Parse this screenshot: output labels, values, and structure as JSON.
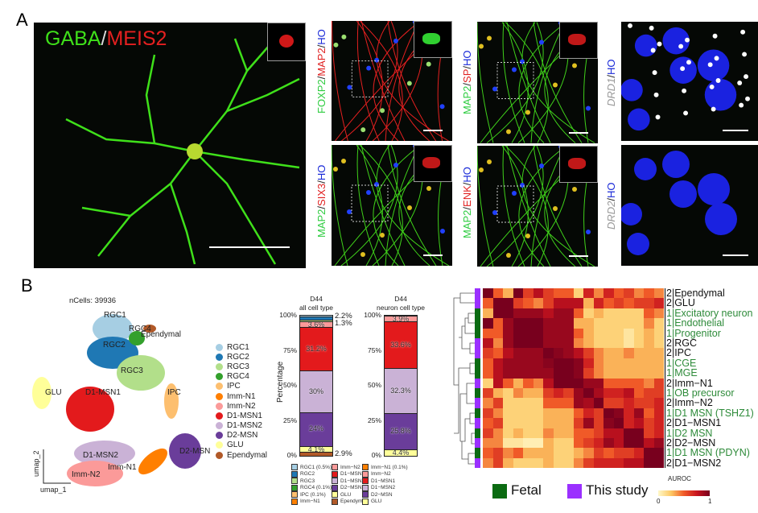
{
  "panel_a": {
    "label": "A",
    "main_image": {
      "label_green": "GABA",
      "slash": "/",
      "label_red": "MEIS2"
    },
    "images": [
      {
        "parts": [
          [
            "FOXP2",
            "#2ecc40"
          ],
          [
            "/",
            "#222"
          ],
          [
            "MAP2",
            "#e02020"
          ],
          [
            "/",
            "#222"
          ],
          [
            "HO",
            "#1a2ad8"
          ]
        ]
      },
      {
        "parts": [
          [
            "MAP2",
            "#2ecc40"
          ],
          [
            "/",
            "#222"
          ],
          [
            "SIX3",
            "#e02020"
          ],
          [
            "/",
            "#222"
          ],
          [
            "HO",
            "#1a2ad8"
          ]
        ]
      },
      {
        "parts": [
          [
            "MAP2",
            "#2ecc40"
          ],
          [
            "/",
            "#222"
          ],
          [
            "SP",
            "#e02020"
          ],
          [
            "/",
            "#222"
          ],
          [
            "HO",
            "#1a2ad8"
          ]
        ]
      },
      {
        "parts": [
          [
            "MAP2",
            "#2ecc40"
          ],
          [
            "/",
            "#222"
          ],
          [
            "ENK",
            "#e02020"
          ],
          [
            "/",
            "#222"
          ],
          [
            "HO",
            "#1a2ad8"
          ]
        ]
      },
      {
        "parts": [
          [
            "DRD1",
            "#999"
          ],
          [
            "/",
            "#222"
          ],
          [
            "HO",
            "#1a2ad8"
          ]
        ]
      },
      {
        "parts": [
          [
            "DRD2",
            "#999"
          ],
          [
            "/",
            "#222"
          ],
          [
            "HO",
            "#1a2ad8"
          ]
        ]
      }
    ]
  },
  "panel_b": {
    "label": "B",
    "umap": {
      "ncells": "nCells: 39936",
      "xaxis": "umap_1",
      "yaxis": "umap_2",
      "legend": [
        {
          "name": "RGC1",
          "color": "#a6cee3"
        },
        {
          "name": "RGC2",
          "color": "#1f78b4"
        },
        {
          "name": "RGC3",
          "color": "#b2df8a"
        },
        {
          "name": "RGC4",
          "color": "#33a02c"
        },
        {
          "name": "IPC",
          "color": "#fdbf6f"
        },
        {
          "name": "Imm-N1",
          "color": "#ff7f00"
        },
        {
          "name": "Imm-N2",
          "color": "#fb9a99"
        },
        {
          "name": "D1-MSN1",
          "color": "#e31a1c"
        },
        {
          "name": "D1-MSN2",
          "color": "#cab2d6"
        },
        {
          "name": "D2-MSN",
          "color": "#6a3d9a"
        },
        {
          "name": "GLU",
          "color": "#ffff99"
        },
        {
          "name": "Ependymal",
          "color": "#b15928"
        }
      ]
    },
    "bars": {
      "ylabel": "Percentage",
      "ticks": [
        "0%",
        "25%",
        "50%",
        "75%",
        "100%"
      ],
      "charts": [
        {
          "title1": "D44",
          "title2": "all cell type",
          "segments": [
            [
              "Ependymal",
              2.9,
              "#b15928"
            ],
            [
              "GLU",
              4.1,
              "#ffff99"
            ],
            [
              "D2-MSN",
              24,
              "#6a3d9a"
            ],
            [
              "D1-MSN2",
              30,
              "#cab2d6"
            ],
            [
              "D1-MSN1",
              31.2,
              "#e31a1c"
            ],
            [
              "Imm-N2",
              3.6,
              "#fb9a99"
            ],
            [
              "Imm-N1",
              0.1,
              "#ff7f00"
            ],
            [
              "IPC",
              0.1,
              "#fdbf6f"
            ],
            [
              "RGC4",
              0.1,
              "#33a02c"
            ],
            [
              "RGC3",
              1.3,
              "#b2df8a"
            ],
            [
              "RGC2",
              2.2,
              "#1f78b4"
            ],
            [
              "RGC1",
              0.5,
              "#a6cee3"
            ]
          ],
          "labels": {
            "D2-MSN": "24%",
            "D1-MSN2": "30%",
            "D1-MSN1": "31.2%",
            "Imm-N2": "3.6%",
            "GLU": "4.1%"
          },
          "side_labels": [
            "2.2%",
            "1.3%",
            "2.9%"
          ],
          "legend": [
            "RGC1 (0.5%)",
            "RGC2",
            "RGC3",
            "RGC4 (0.1%)",
            "IPC (0.1%)",
            "Imm−N1",
            "Imm−N2",
            "D1−MSN1",
            "D1−MSN2",
            "D2−MSN",
            "GLU",
            "Ependymal"
          ]
        },
        {
          "title1": "D44",
          "title2": "neuron cell type",
          "segments": [
            [
              "GLU",
              4.4,
              "#ffff99"
            ],
            [
              "D2-MSN",
              25.8,
              "#6a3d9a"
            ],
            [
              "D1-MSN2",
              32.3,
              "#cab2d6"
            ],
            [
              "D1-MSN1",
              33.6,
              "#e31a1c"
            ],
            [
              "Imm-N2",
              3.9,
              "#fb9a99"
            ],
            [
              "Imm-N1",
              0.1,
              "#ff7f00"
            ]
          ],
          "labels": {
            "GLU": "4.4%",
            "D2-MSN": "25.8%",
            "D1-MSN2": "32.3%",
            "D1-MSN1": "33.6%",
            "Imm-N2": "3.9%"
          },
          "legend": [
            "Imm−N1 (0.1%)",
            "Imm−N2",
            "D1−MSN1",
            "D1−MSN2",
            "D2−MSN",
            "GLU"
          ]
        }
      ]
    },
    "heatmap": {
      "rows": [
        [
          "2|Ependymal",
          "study"
        ],
        [
          "2|GLU",
          "study"
        ],
        [
          "1|Excitatory neuron",
          "fetal"
        ],
        [
          "1|Endothelial",
          "fetal"
        ],
        [
          "1|Progenitor",
          "fetal"
        ],
        [
          "2|RGC",
          "study"
        ],
        [
          "2|IPC",
          "study"
        ],
        [
          "1|CGE",
          "fetal"
        ],
        [
          "1|MGE",
          "fetal"
        ],
        [
          "2|Imm−N1",
          "study"
        ],
        [
          "1|OB precursor",
          "fetal"
        ],
        [
          "2|Imm−N2",
          "study"
        ],
        [
          "1|D1 MSN (TSHZ1)",
          "fetal"
        ],
        [
          "2|D1−MSN1",
          "study"
        ],
        [
          "1|D2 MSN",
          "fetal"
        ],
        [
          "2|D2−MSN",
          "study"
        ],
        [
          "1|D1 MSN (PDYN)",
          "fetal"
        ],
        [
          "2|D1−MSN2",
          "study"
        ]
      ],
      "colors": {
        "fetal": "#0b6b12",
        "study": "#9b30ff",
        "fetal_text": "#2e8b3a",
        "study_text": "#111"
      },
      "legend": {
        "fetal": "Fetal",
        "study": "This study",
        "scale_title": "AUROC",
        "min": "0",
        "max": "1"
      },
      "values": [
        [
          1,
          0.5,
          0.3,
          1,
          0.6,
          0.8,
          0.6,
          0.5,
          0.5,
          0.2,
          0.7,
          0.4,
          0.7,
          0.5,
          0.6,
          0.4,
          0.5,
          0.4
        ],
        [
          0.5,
          1,
          1,
          0.6,
          0.5,
          0.4,
          0.6,
          0.8,
          0.8,
          0.8,
          0.3,
          0.7,
          0.5,
          0.6,
          0.5,
          0.6,
          0.6,
          0.7
        ],
        [
          0.3,
          1,
          1,
          0.9,
          0.9,
          0.9,
          0.8,
          0.9,
          0.9,
          0.5,
          0.2,
          0.3,
          0.2,
          0.2,
          0.2,
          0.2,
          0.5,
          0.4
        ],
        [
          1,
          0.5,
          0.9,
          1,
          1,
          1,
          0.9,
          0.9,
          0.9,
          0.3,
          0.3,
          0.2,
          0.2,
          0.2,
          0.2,
          0.2,
          0.4,
          0.2
        ],
        [
          0.5,
          0.5,
          0.9,
          1,
          1,
          1,
          0.9,
          0.9,
          0.9,
          0.5,
          0.3,
          0.2,
          0.2,
          0.2,
          0.1,
          0.2,
          0.3,
          0.2
        ],
        [
          0.8,
          0.4,
          0.9,
          1,
          1,
          1,
          0.9,
          0.9,
          0.9,
          0.4,
          0.3,
          0.2,
          0.2,
          0.2,
          0.1,
          0.2,
          0.3,
          0.2
        ],
        [
          0.6,
          0.5,
          0.8,
          0.9,
          0.9,
          0.9,
          1,
          0.95,
          0.9,
          0.8,
          0.6,
          0.4,
          0.3,
          0.3,
          0.4,
          0.3,
          0.3,
          0.3
        ],
        [
          0.5,
          0.8,
          0.9,
          0.9,
          0.9,
          0.9,
          0.95,
          1,
          1,
          0.95,
          0.7,
          0.4,
          0.3,
          0.3,
          0.3,
          0.3,
          0.3,
          0.3
        ],
        [
          0.5,
          0.8,
          0.9,
          0.9,
          0.9,
          0.9,
          0.9,
          1,
          1,
          0.95,
          0.6,
          0.4,
          0.3,
          0.3,
          0.3,
          0.3,
          0.3,
          0.3
        ],
        [
          0.2,
          0.8,
          0.5,
          0.3,
          0.5,
          0.4,
          0.8,
          1,
          1,
          1,
          0.9,
          0.9,
          0.5,
          0.5,
          0.5,
          0.5,
          0.4,
          0.6
        ],
        [
          0.6,
          0.3,
          0.2,
          0.4,
          0.3,
          0.3,
          0.6,
          0.7,
          0.6,
          0.9,
          1,
          0.85,
          0.7,
          0.7,
          0.8,
          0.5,
          0.6,
          0.6
        ],
        [
          0.4,
          0.6,
          0.2,
          0.2,
          0.2,
          0.2,
          0.5,
          0.5,
          0.5,
          0.9,
          0.85,
          1,
          0.6,
          0.6,
          0.7,
          0.6,
          0.6,
          0.7
        ],
        [
          0.6,
          0.4,
          0.2,
          0.2,
          0.2,
          0.2,
          0.3,
          0.3,
          0.3,
          0.5,
          0.7,
          0.6,
          1,
          0.95,
          0.7,
          0.9,
          0.5,
          0.7
        ],
        [
          0.5,
          0.6,
          0.2,
          0.2,
          0.2,
          0.2,
          0.3,
          0.3,
          0.3,
          0.6,
          0.9,
          0.6,
          0.95,
          1,
          0.7,
          0.8,
          0.6,
          0.7
        ],
        [
          0.6,
          0.4,
          0.2,
          0.3,
          0.2,
          0.2,
          0.4,
          0.3,
          0.3,
          0.5,
          0.5,
          0.6,
          0.8,
          0.8,
          1,
          1,
          0.6,
          0.7
        ],
        [
          0.4,
          0.4,
          0.1,
          0.1,
          0.05,
          0.05,
          0.3,
          0.2,
          0.2,
          0.5,
          0.6,
          0.7,
          0.9,
          0.8,
          1,
          1,
          0.8,
          0.9
        ],
        [
          0.5,
          0.6,
          0.4,
          0.5,
          0.3,
          0.3,
          0.3,
          0.2,
          0.2,
          0.3,
          0.4,
          0.6,
          0.5,
          0.6,
          0.6,
          0.7,
          1,
          1
        ],
        [
          0.4,
          0.6,
          0.3,
          0.2,
          0.2,
          0.2,
          0.3,
          0.2,
          0.2,
          0.4,
          0.6,
          0.7,
          0.7,
          0.7,
          0.8,
          0.8,
          1,
          1
        ]
      ]
    }
  }
}
